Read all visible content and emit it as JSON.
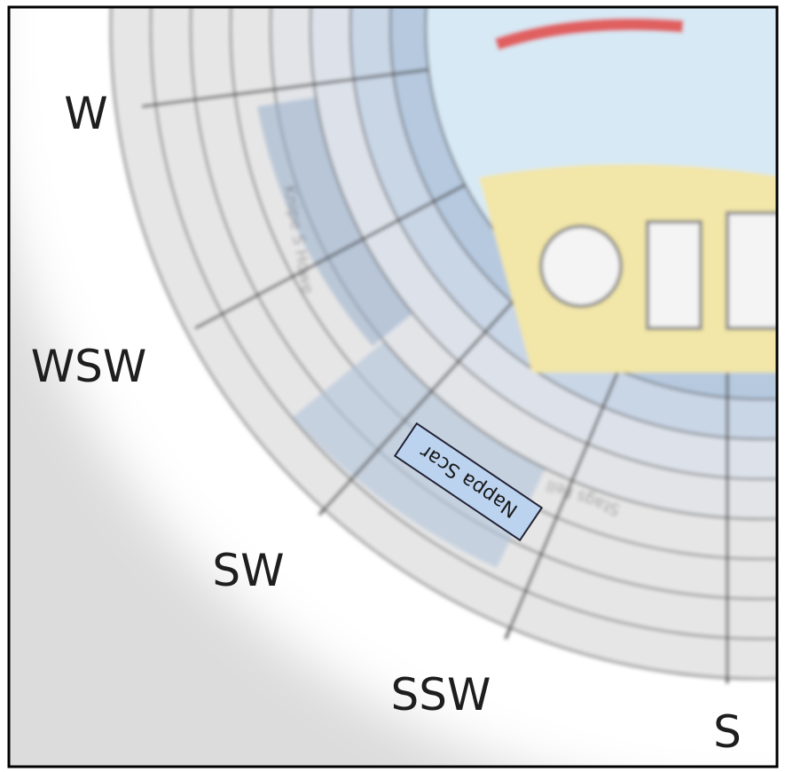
{
  "compass": {
    "labels": [
      "W",
      "WSW",
      "SW",
      "SSW",
      "S"
    ]
  },
  "wheel": {
    "highlighted": "Nappa Scar",
    "labels": [
      "Stags Fell",
      "Knipe S Howe"
    ]
  }
}
